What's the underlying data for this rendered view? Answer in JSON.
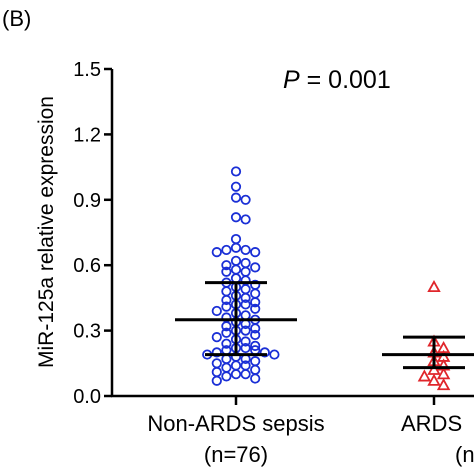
{
  "panel_label": "(B)",
  "chart_data": {
    "type": "scatter",
    "subtype": "dot plot with mean and SD bars",
    "title": "",
    "annotation": {
      "prefix": "P",
      "text": " = 0.001"
    },
    "ylabel": "MiR-125a relative expression",
    "xlabel": "",
    "ylim": [
      0.0,
      1.5
    ],
    "yticks": [
      "0.0",
      "0.3",
      "0.6",
      "0.9",
      "1.2",
      "1.5"
    ],
    "grid": false,
    "legend": "none",
    "groups": [
      {
        "label": "Non-ARDS sepsis",
        "n_label": "(n=76)",
        "marker": "circle-open",
        "color": "#1a2fd6",
        "mean": 0.35,
        "sd_lower": 0.19,
        "sd_upper": 0.52,
        "values": [
          1.03,
          0.96,
          0.91,
          0.9,
          0.82,
          0.81,
          0.72,
          0.68,
          0.67,
          0.67,
          0.66,
          0.66,
          0.62,
          0.61,
          0.6,
          0.59,
          0.58,
          0.57,
          0.57,
          0.54,
          0.53,
          0.52,
          0.51,
          0.5,
          0.49,
          0.48,
          0.47,
          0.46,
          0.45,
          0.44,
          0.43,
          0.42,
          0.42,
          0.41,
          0.4,
          0.39,
          0.38,
          0.37,
          0.36,
          0.35,
          0.34,
          0.33,
          0.32,
          0.31,
          0.3,
          0.3,
          0.29,
          0.28,
          0.27,
          0.26,
          0.25,
          0.24,
          0.23,
          0.22,
          0.22,
          0.21,
          0.21,
          0.2,
          0.2,
          0.19,
          0.19,
          0.18,
          0.17,
          0.17,
          0.16,
          0.15,
          0.14,
          0.14,
          0.13,
          0.12,
          0.11,
          0.1,
          0.1,
          0.09,
          0.08,
          0.07
        ]
      },
      {
        "label": "ARDS",
        "n_label": "(n=",
        "marker": "triangle-open",
        "color": "#e0262b",
        "mean": 0.19,
        "sd_lower": 0.13,
        "sd_upper": 0.27,
        "values": [
          0.5,
          0.25,
          0.22,
          0.2,
          0.18,
          0.16,
          0.14,
          0.12,
          0.1,
          0.09,
          0.07,
          0.05
        ]
      }
    ]
  }
}
